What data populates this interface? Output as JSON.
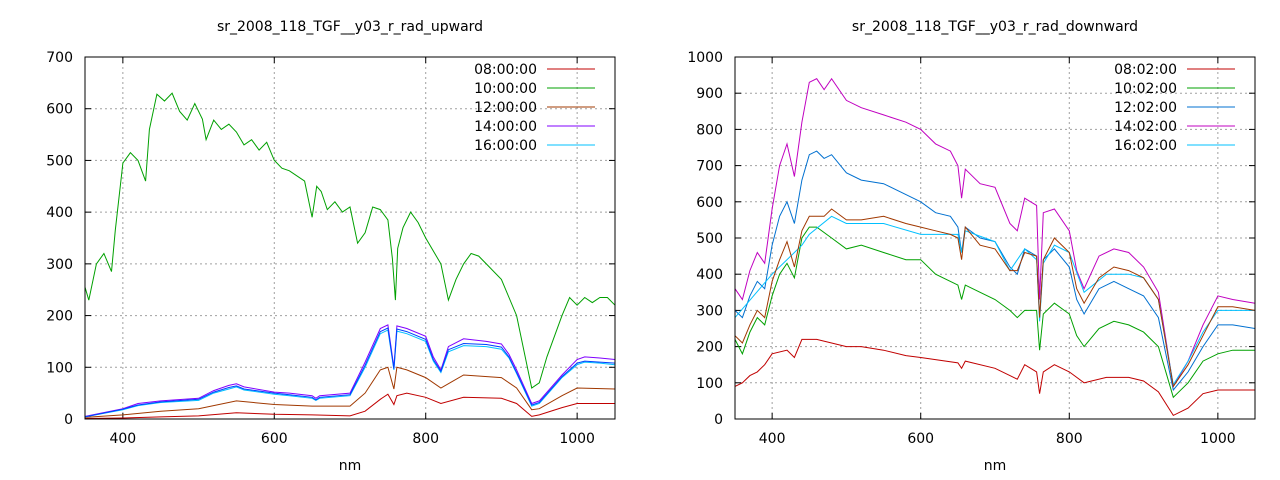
{
  "chart_data": [
    {
      "type": "line",
      "title": "sr_2008_118_TGF__y03_r_rad_upward",
      "xlabel": "nm",
      "ylabel": "",
      "xlim": [
        350,
        1050
      ],
      "ylim": [
        0,
        700
      ],
      "xticks": [
        400,
        600,
        800,
        1000
      ],
      "yticks": [
        0,
        100,
        200,
        300,
        400,
        500,
        600,
        700
      ],
      "grid": true,
      "legend_position": "top-right",
      "series": [
        {
          "name": "08:00:00",
          "color": "#c00000",
          "x": [
            350,
            400,
            450,
            500,
            550,
            600,
            650,
            700,
            720,
            740,
            750,
            758,
            762,
            775,
            800,
            820,
            850,
            900,
            920,
            940,
            950,
            980,
            1000,
            1050
          ],
          "y": [
            1,
            2,
            4,
            6,
            12,
            9,
            8,
            6,
            15,
            38,
            48,
            28,
            45,
            50,
            42,
            30,
            42,
            40,
            30,
            5,
            8,
            22,
            30,
            30
          ]
        },
        {
          "name": "10:00:00",
          "color": "#00a000",
          "x": [
            350,
            355,
            365,
            375,
            385,
            390,
            400,
            410,
            420,
            430,
            435,
            445,
            455,
            465,
            475,
            485,
            495,
            505,
            510,
            520,
            530,
            540,
            550,
            560,
            570,
            580,
            590,
            600,
            610,
            620,
            640,
            650,
            656,
            662,
            670,
            680,
            690,
            700,
            710,
            720,
            730,
            740,
            750,
            756,
            760,
            763,
            770,
            780,
            790,
            800,
            820,
            830,
            840,
            850,
            860,
            870,
            880,
            900,
            920,
            940,
            950,
            960,
            980,
            990,
            1000,
            1010,
            1020,
            1030,
            1040,
            1050
          ],
          "y": [
            255,
            230,
            300,
            320,
            285,
            365,
            495,
            515,
            500,
            460,
            560,
            628,
            615,
            630,
            595,
            578,
            610,
            580,
            540,
            578,
            560,
            570,
            555,
            530,
            540,
            520,
            535,
            500,
            485,
            480,
            460,
            390,
            450,
            440,
            405,
            420,
            400,
            410,
            340,
            360,
            410,
            405,
            385,
            310,
            230,
            330,
            370,
            400,
            380,
            350,
            300,
            230,
            270,
            300,
            320,
            315,
            300,
            270,
            200,
            60,
            70,
            120,
            200,
            235,
            220,
            235,
            225,
            235,
            235,
            220
          ]
        },
        {
          "name": "12:00:00",
          "color": "#a03800",
          "x": [
            350,
            400,
            450,
            500,
            550,
            600,
            650,
            700,
            720,
            740,
            750,
            758,
            762,
            775,
            800,
            820,
            850,
            900,
            920,
            940,
            950,
            980,
            1000,
            1050
          ],
          "y": [
            3,
            8,
            15,
            20,
            35,
            28,
            25,
            25,
            50,
            95,
            100,
            58,
            100,
            95,
            80,
            60,
            85,
            80,
            60,
            18,
            20,
            45,
            60,
            58
          ]
        },
        {
          "name": "14:00:00",
          "color": "#8000ff",
          "x": [
            350,
            400,
            420,
            450,
            500,
            520,
            540,
            550,
            560,
            600,
            620,
            650,
            655,
            660,
            700,
            720,
            740,
            750,
            758,
            762,
            775,
            800,
            810,
            820,
            830,
            850,
            880,
            900,
            910,
            920,
            940,
            950,
            980,
            1000,
            1010,
            1030,
            1050
          ],
          "y": [
            5,
            20,
            30,
            35,
            40,
            55,
            65,
            68,
            62,
            52,
            50,
            45,
            40,
            45,
            50,
            110,
            175,
            182,
            100,
            180,
            175,
            160,
            120,
            95,
            140,
            155,
            150,
            145,
            125,
            95,
            30,
            35,
            85,
            115,
            120,
            118,
            115
          ]
        },
        {
          "name": "16:00:00",
          "color": "#00c0ff",
          "x": [
            350,
            400,
            420,
            450,
            500,
            520,
            540,
            550,
            560,
            600,
            620,
            650,
            655,
            660,
            700,
            720,
            740,
            750,
            758,
            762,
            775,
            800,
            810,
            820,
            830,
            850,
            880,
            900,
            910,
            920,
            940,
            950,
            980,
            1000,
            1010,
            1030,
            1050
          ],
          "y": [
            4,
            18,
            26,
            32,
            36,
            50,
            58,
            62,
            56,
            48,
            45,
            40,
            36,
            40,
            45,
            100,
            165,
            172,
            95,
            170,
            165,
            150,
            112,
            90,
            130,
            142,
            140,
            135,
            118,
            88,
            25,
            30,
            80,
            105,
            110,
            108,
            105
          ]
        },
        {
          "name": "",
          "color": "#0040ff",
          "x": [
            350,
            400,
            420,
            450,
            500,
            520,
            540,
            550,
            560,
            600,
            620,
            650,
            655,
            660,
            700,
            720,
            740,
            750,
            758,
            762,
            775,
            800,
            810,
            820,
            830,
            850,
            880,
            900,
            910,
            920,
            940,
            950,
            980,
            1000,
            1010,
            1030,
            1050
          ],
          "y": [
            4,
            19,
            27,
            33,
            38,
            52,
            61,
            64,
            58,
            50,
            47,
            42,
            37,
            42,
            47,
            104,
            169,
            176,
            97,
            174,
            169,
            154,
            115,
            92,
            134,
            146,
            144,
            139,
            120,
            90,
            27,
            32,
            82,
            108,
            112,
            110,
            108
          ]
        }
      ]
    },
    {
      "type": "line",
      "title": "sr_2008_118_TGF__y03_r_rad_downward",
      "xlabel": "nm",
      "ylabel": "",
      "xlim": [
        350,
        1050
      ],
      "ylim": [
        0,
        1000
      ],
      "xticks": [
        400,
        600,
        800,
        1000
      ],
      "yticks": [
        0,
        100,
        200,
        300,
        400,
        500,
        600,
        700,
        800,
        900,
        1000
      ],
      "grid": true,
      "legend_position": "top-right",
      "series": [
        {
          "name": "08:02:00",
          "color": "#c00000",
          "x": [
            350,
            360,
            370,
            380,
            390,
            400,
            420,
            430,
            440,
            460,
            480,
            500,
            520,
            550,
            580,
            600,
            650,
            655,
            660,
            700,
            720,
            730,
            740,
            756,
            760,
            765,
            780,
            800,
            820,
            850,
            880,
            900,
            920,
            940,
            960,
            980,
            1000,
            1050
          ],
          "y": [
            90,
            100,
            120,
            130,
            150,
            180,
            190,
            170,
            220,
            220,
            210,
            200,
            200,
            190,
            175,
            170,
            155,
            140,
            160,
            140,
            120,
            110,
            150,
            130,
            70,
            130,
            150,
            130,
            100,
            115,
            115,
            105,
            75,
            10,
            30,
            70,
            80,
            80
          ]
        },
        {
          "name": "10:02:00",
          "color": "#00a000",
          "x": [
            350,
            360,
            370,
            380,
            390,
            400,
            410,
            420,
            430,
            440,
            450,
            460,
            480,
            500,
            520,
            550,
            580,
            600,
            620,
            650,
            655,
            660,
            680,
            700,
            720,
            730,
            740,
            756,
            760,
            765,
            780,
            800,
            810,
            820,
            840,
            860,
            880,
            900,
            920,
            940,
            960,
            980,
            1000,
            1020,
            1050
          ],
          "y": [
            220,
            180,
            240,
            280,
            260,
            340,
            400,
            430,
            390,
            500,
            530,
            530,
            500,
            470,
            480,
            460,
            440,
            440,
            400,
            370,
            330,
            370,
            350,
            330,
            300,
            280,
            300,
            300,
            190,
            290,
            320,
            290,
            230,
            200,
            250,
            270,
            260,
            240,
            200,
            60,
            100,
            160,
            180,
            190,
            190
          ]
        },
        {
          "name": "12:02:00",
          "color": "#0070d0",
          "x": [
            350,
            360,
            370,
            380,
            390,
            400,
            410,
            420,
            430,
            440,
            450,
            460,
            470,
            480,
            500,
            520,
            550,
            580,
            600,
            620,
            640,
            650,
            655,
            660,
            680,
            700,
            720,
            730,
            740,
            756,
            760,
            765,
            780,
            800,
            810,
            820,
            840,
            860,
            880,
            900,
            920,
            940,
            960,
            980,
            1000,
            1020,
            1050
          ],
          "y": [
            300,
            280,
            340,
            380,
            360,
            480,
            560,
            600,
            540,
            660,
            730,
            740,
            720,
            730,
            680,
            660,
            650,
            620,
            600,
            570,
            560,
            530,
            460,
            530,
            500,
            490,
            420,
            400,
            470,
            450,
            280,
            440,
            470,
            420,
            330,
            290,
            360,
            380,
            360,
            340,
            280,
            80,
            130,
            200,
            260,
            260,
            250
          ]
        },
        {
          "name": "14:02:00",
          "color": "#c000c0",
          "x": [
            350,
            360,
            370,
            380,
            390,
            400,
            410,
            420,
            430,
            440,
            450,
            460,
            470,
            480,
            500,
            520,
            550,
            580,
            600,
            620,
            640,
            650,
            655,
            660,
            680,
            700,
            720,
            730,
            740,
            756,
            760,
            765,
            780,
            800,
            810,
            820,
            840,
            860,
            880,
            900,
            920,
            940,
            960,
            980,
            1000,
            1020,
            1050
          ],
          "y": [
            360,
            330,
            410,
            460,
            430,
            580,
            700,
            760,
            670,
            820,
            930,
            940,
            910,
            940,
            880,
            860,
            840,
            820,
            800,
            760,
            740,
            700,
            610,
            690,
            650,
            640,
            540,
            520,
            610,
            590,
            330,
            570,
            580,
            520,
            410,
            360,
            450,
            470,
            460,
            420,
            350,
            90,
            160,
            260,
            340,
            330,
            320
          ]
        },
        {
          "name": "16:02:00",
          "color": "#00c0ff",
          "x": [
            350,
            400,
            440,
            450,
            480,
            500,
            550,
            600,
            650,
            655,
            660,
            700,
            720,
            740,
            756,
            760,
            765,
            780,
            800,
            820,
            850,
            880,
            900,
            920,
            940,
            960,
            980,
            1000,
            1050
          ],
          "y": [
            280,
            400,
            480,
            510,
            560,
            540,
            540,
            510,
            510,
            460,
            520,
            490,
            410,
            470,
            440,
            270,
            430,
            480,
            460,
            350,
            400,
            400,
            390,
            330,
            95,
            160,
            240,
            300,
            300
          ]
        },
        {
          "name": "",
          "color": "#a03800",
          "x": [
            350,
            360,
            370,
            380,
            390,
            400,
            410,
            420,
            430,
            440,
            450,
            460,
            470,
            480,
            500,
            520,
            550,
            580,
            600,
            620,
            640,
            650,
            655,
            660,
            680,
            700,
            720,
            730,
            740,
            756,
            760,
            765,
            780,
            800,
            810,
            820,
            840,
            860,
            880,
            900,
            920,
            940,
            960,
            980,
            1000,
            1020,
            1050
          ],
          "y": [
            230,
            210,
            260,
            300,
            280,
            380,
            440,
            490,
            420,
            520,
            560,
            560,
            560,
            580,
            550,
            550,
            560,
            540,
            530,
            520,
            510,
            500,
            440,
            530,
            480,
            470,
            410,
            410,
            460,
            450,
            280,
            440,
            500,
            460,
            360,
            320,
            390,
            420,
            410,
            390,
            330,
            90,
            150,
            230,
            310,
            310,
            300
          ]
        }
      ]
    }
  ]
}
